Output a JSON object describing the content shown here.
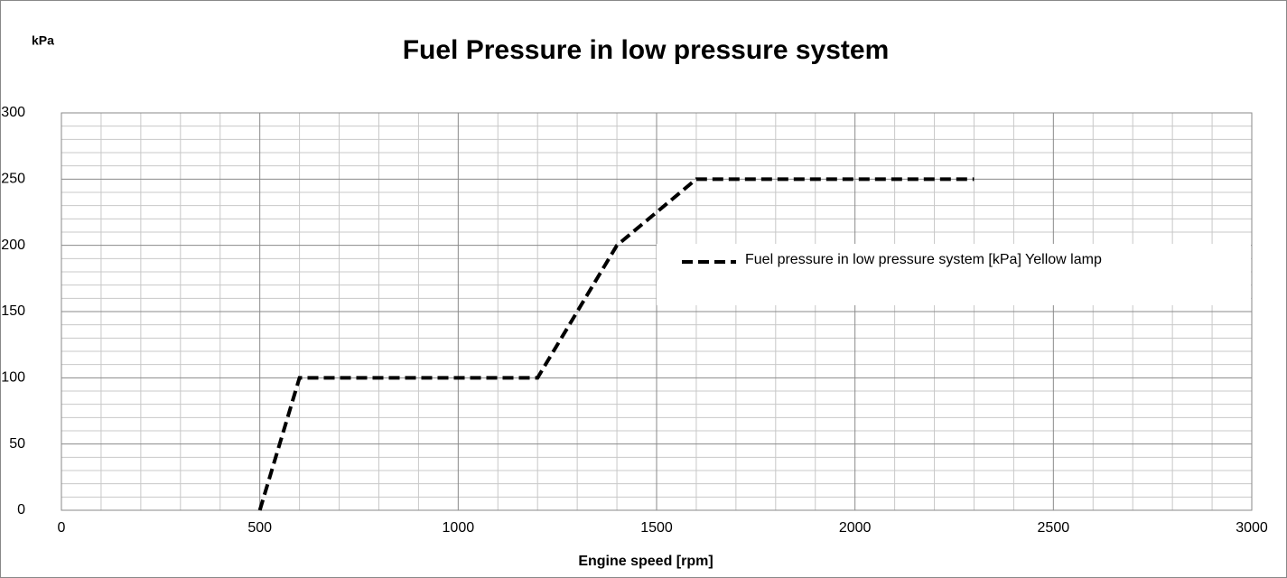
{
  "chart_data": {
    "type": "line",
    "title": "Fuel Pressure in low pressure system",
    "y_label": "kPa",
    "x_label": "Engine speed [rpm]",
    "x": [
      500,
      600,
      1200,
      1400,
      1600,
      2300
    ],
    "series": [
      {
        "name": "Fuel pressure in low pressure system [kPa] Yellow lamp",
        "color": "#000000",
        "dash": true,
        "values": [
          0,
          100,
          100,
          200,
          250,
          250
        ]
      }
    ],
    "xlim": [
      0,
      3000
    ],
    "xticks": [
      0,
      500,
      1000,
      1500,
      2000,
      2500,
      3000
    ],
    "ylim": [
      0,
      300
    ],
    "yticks": [
      0,
      50,
      100,
      150,
      200,
      250,
      300
    ],
    "grid": true,
    "legend": "center right"
  }
}
